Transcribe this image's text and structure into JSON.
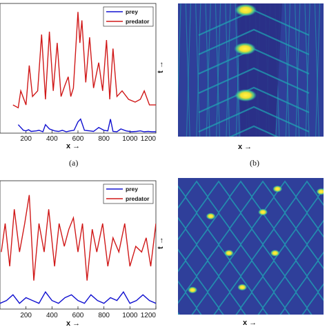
{
  "colors": {
    "prey": "#1010d0",
    "predator": "#d01818",
    "heatmap_background": "#3b3f95",
    "heatmap_mid": "#20a6b4",
    "heatmap_peak": "#f6e62b"
  },
  "panels": {
    "a": {
      "caption": "(a)",
      "xlabel": "x →"
    },
    "b": {
      "caption": "(b)",
      "xlabel": "x →",
      "ylabel": "t →"
    },
    "c": {
      "xlabel": "x →"
    },
    "d": {
      "xlabel": "x →",
      "ylabel": "t →"
    }
  },
  "chart_data": [
    {
      "panel": "a",
      "type": "line",
      "xlim": [
        0,
        1200
      ],
      "xticks": [
        "200",
        "400",
        "600",
        "800",
        "1000",
        "1200"
      ],
      "legend_position": "top-right",
      "series": [
        {
          "name": "prey",
          "x": [
            140,
            180,
            200,
            220,
            240,
            280,
            300,
            330,
            350,
            380,
            420,
            450,
            480,
            510,
            540,
            570,
            600,
            620,
            650,
            690,
            720,
            760,
            800,
            830,
            850,
            870,
            900,
            930,
            970,
            1010,
            1050,
            1080,
            1110,
            1140,
            1170,
            1200
          ],
          "y": [
            0.3,
            0.1,
            0.08,
            0.12,
            0.06,
            0.08,
            0.1,
            0.05,
            0.3,
            0.15,
            0.08,
            0.06,
            0.1,
            0.05,
            0.08,
            0.1,
            0.4,
            0.5,
            0.1,
            0.08,
            0.06,
            0.2,
            0.1,
            0.08,
            0.5,
            0.06,
            0.05,
            0.15,
            0.08,
            0.05,
            0.06,
            0.08,
            0.05,
            0.06,
            0.05,
            0.05
          ]
        },
        {
          "name": "predator",
          "x": [
            100,
            140,
            160,
            200,
            225,
            250,
            290,
            320,
            350,
            380,
            410,
            440,
            470,
            500,
            525,
            545,
            565,
            600,
            615,
            630,
            660,
            690,
            720,
            760,
            790,
            820,
            845,
            870,
            900,
            940,
            990,
            1040,
            1080,
            1110,
            1150,
            1200
          ],
          "y": [
            1.0,
            0.9,
            1.5,
            1.0,
            2.4,
            1.3,
            1.5,
            3.5,
            1.2,
            3.6,
            1.5,
            3.2,
            1.3,
            1.7,
            2.0,
            1.3,
            1.6,
            4.3,
            3.2,
            4.0,
            1.8,
            3.4,
            1.6,
            2.5,
            1.5,
            3.3,
            1.2,
            3.0,
            1.3,
            1.5,
            1.2,
            1.1,
            1.2,
            1.5,
            1.0,
            1.0
          ]
        }
      ]
    },
    {
      "panel": "b",
      "type": "heatmap",
      "axes": [
        "x",
        "t"
      ],
      "peak_bands": [
        {
          "x": 900,
          "t": 0.95
        },
        {
          "x": 890,
          "t": 0.66
        },
        {
          "x": 900,
          "t": 0.31
        }
      ]
    },
    {
      "panel": "c",
      "type": "line",
      "xlim": [
        0,
        1200
      ],
      "xticks": [
        "200",
        "400",
        "600",
        "800",
        "1000",
        "1200"
      ],
      "legend_position": "top-right",
      "series": [
        {
          "name": "prey",
          "x": [
            0,
            50,
            100,
            150,
            200,
            250,
            300,
            350,
            400,
            450,
            500,
            550,
            600,
            650,
            700,
            750,
            800,
            850,
            900,
            950,
            1000,
            1050,
            1100,
            1150,
            1200
          ],
          "y": [
            0.2,
            0.3,
            0.5,
            0.2,
            0.4,
            0.3,
            0.2,
            0.6,
            0.3,
            0.2,
            0.4,
            0.5,
            0.3,
            0.2,
            0.5,
            0.3,
            0.2,
            0.4,
            0.3,
            0.6,
            0.2,
            0.3,
            0.5,
            0.3,
            0.2
          ]
        },
        {
          "name": "predator",
          "x": [
            10,
            40,
            75,
            110,
            150,
            190,
            225,
            260,
            300,
            340,
            375,
            420,
            455,
            495,
            530,
            565,
            600,
            635,
            670,
            710,
            745,
            790,
            830,
            870,
            915,
            960,
            1000,
            1045,
            1090,
            1125,
            1160,
            1200
          ],
          "y": [
            2.0,
            3.0,
            1.5,
            3.5,
            2.0,
            3.0,
            4.0,
            1.0,
            3.0,
            2.0,
            3.5,
            1.5,
            3.0,
            2.2,
            2.8,
            3.2,
            2.0,
            3.0,
            1.0,
            2.8,
            2.0,
            3.0,
            1.5,
            2.5,
            2.0,
            3.0,
            1.5,
            2.2,
            2.0,
            2.5,
            1.5,
            3.0
          ]
        }
      ]
    },
    {
      "panel": "d",
      "type": "heatmap",
      "axes": [
        "x",
        "t"
      ],
      "peak_spots": [
        {
          "x": 820,
          "t": 0.92
        },
        {
          "x": 1180,
          "t": 0.9
        },
        {
          "x": 700,
          "t": 0.75
        },
        {
          "x": 270,
          "t": 0.72
        },
        {
          "x": 420,
          "t": 0.45
        },
        {
          "x": 800,
          "t": 0.45
        },
        {
          "x": 120,
          "t": 0.18
        },
        {
          "x": 530,
          "t": 0.2
        }
      ]
    }
  ]
}
